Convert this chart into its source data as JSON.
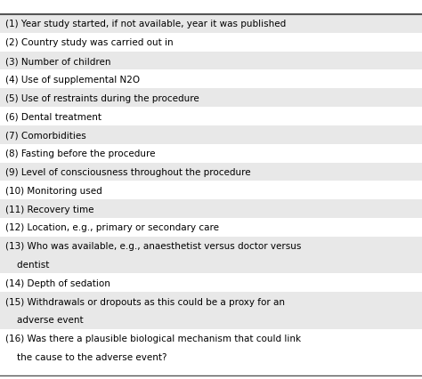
{
  "rows": [
    {
      "text": "(1) Year study started, if not available, year it was published",
      "shaded": true
    },
    {
      "text": "(2) Country study was carried out in",
      "shaded": false
    },
    {
      "text": "(3) Number of children",
      "shaded": true
    },
    {
      "text": "(4) Use of supplemental N2O",
      "shaded": false
    },
    {
      "text": "(5) Use of restraints during the procedure",
      "shaded": true
    },
    {
      "text": "(6) Dental treatment",
      "shaded": false
    },
    {
      "text": "(7) Comorbidities",
      "shaded": true
    },
    {
      "text": "(8) Fasting before the procedure",
      "shaded": false
    },
    {
      "text": "(9) Level of consciousness throughout the procedure",
      "shaded": true
    },
    {
      "text": "(10) Monitoring used",
      "shaded": false
    },
    {
      "text": "(11) Recovery time",
      "shaded": true
    },
    {
      "text": "(12) Location, e.g., primary or secondary care",
      "shaded": false
    },
    {
      "text": "(13) Who was available, e.g., anaesthetist versus doctor versus\n    dentist",
      "shaded": true
    },
    {
      "text": "(14) Depth of sedation",
      "shaded": false
    },
    {
      "text": "(15) Withdrawals or dropouts as this could be a proxy for an\n    adverse event",
      "shaded": true
    },
    {
      "text": "(16) Was there a plausible biological mechanism that could link\n    the cause to the adverse event?",
      "shaded": false
    }
  ],
  "shaded_color": "#e8e8e8",
  "white_color": "#ffffff",
  "text_color": "#000000",
  "font_size": 7.5,
  "border_color": "#555555",
  "header_line_color": "#555555"
}
